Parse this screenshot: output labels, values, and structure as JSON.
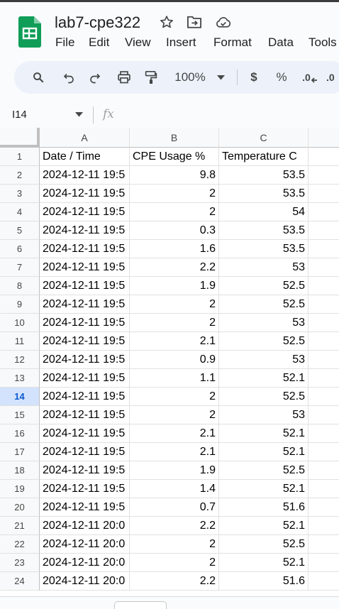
{
  "doc": {
    "title": "lab7-cpe322"
  },
  "menu": [
    "File",
    "Edit",
    "View",
    "Insert",
    "Format",
    "Data",
    "Tools"
  ],
  "toolbar": {
    "zoom": "100%",
    "currency": "$",
    "percent": "%",
    "decrease_decimal": ".0",
    "increase_decimal": ".0"
  },
  "formula_bar": {
    "cell_ref": "I14",
    "fx": "fx"
  },
  "columns": [
    "A",
    "B",
    "C"
  ],
  "selected_row": 14,
  "rows": [
    {
      "n": "1",
      "a": "Date / Time",
      "b": "CPE Usage %",
      "c": "Temperature C"
    },
    {
      "n": "2",
      "a": "2024-12-11 19:5",
      "b": "9.8",
      "c": "53.5"
    },
    {
      "n": "3",
      "a": "2024-12-11 19:5",
      "b": "2",
      "c": "53.5"
    },
    {
      "n": "4",
      "a": "2024-12-11 19:5",
      "b": "2",
      "c": "54"
    },
    {
      "n": "5",
      "a": "2024-12-11 19:5",
      "b": "0.3",
      "c": "53.5"
    },
    {
      "n": "6",
      "a": "2024-12-11 19:5",
      "b": "1.6",
      "c": "53.5"
    },
    {
      "n": "7",
      "a": "2024-12-11 19:5",
      "b": "2.2",
      "c": "53"
    },
    {
      "n": "8",
      "a": "2024-12-11 19:5",
      "b": "1.9",
      "c": "52.5"
    },
    {
      "n": "9",
      "a": "2024-12-11 19:5",
      "b": "2",
      "c": "52.5"
    },
    {
      "n": "10",
      "a": "2024-12-11 19:5",
      "b": "2",
      "c": "53"
    },
    {
      "n": "11",
      "a": "2024-12-11 19:5",
      "b": "2.1",
      "c": "52.5"
    },
    {
      "n": "12",
      "a": "2024-12-11 19:5",
      "b": "0.9",
      "c": "53"
    },
    {
      "n": "13",
      "a": "2024-12-11 19:5",
      "b": "1.1",
      "c": "52.1"
    },
    {
      "n": "14",
      "a": "2024-12-11 19:5",
      "b": "2",
      "c": "52.5"
    },
    {
      "n": "15",
      "a": "2024-12-11 19:5",
      "b": "2",
      "c": "53"
    },
    {
      "n": "16",
      "a": "2024-12-11 19:5",
      "b": "2.1",
      "c": "52.1"
    },
    {
      "n": "17",
      "a": "2024-12-11 19:5",
      "b": "2.1",
      "c": "52.1"
    },
    {
      "n": "18",
      "a": "2024-12-11 19:5",
      "b": "1.9",
      "c": "52.5"
    },
    {
      "n": "19",
      "a": "2024-12-11 19:5",
      "b": "1.4",
      "c": "52.1"
    },
    {
      "n": "20",
      "a": "2024-12-11 19:5",
      "b": "0.7",
      "c": "51.6"
    },
    {
      "n": "21",
      "a": "2024-12-11 20:0",
      "b": "2.2",
      "c": "52.1"
    },
    {
      "n": "22",
      "a": "2024-12-11 20:0",
      "b": "2",
      "c": "52.5"
    },
    {
      "n": "23",
      "a": "2024-12-11 20:0",
      "b": "2",
      "c": "52.1"
    },
    {
      "n": "24",
      "a": "2024-12-11 20:0",
      "b": "2.2",
      "c": "51.6"
    }
  ]
}
